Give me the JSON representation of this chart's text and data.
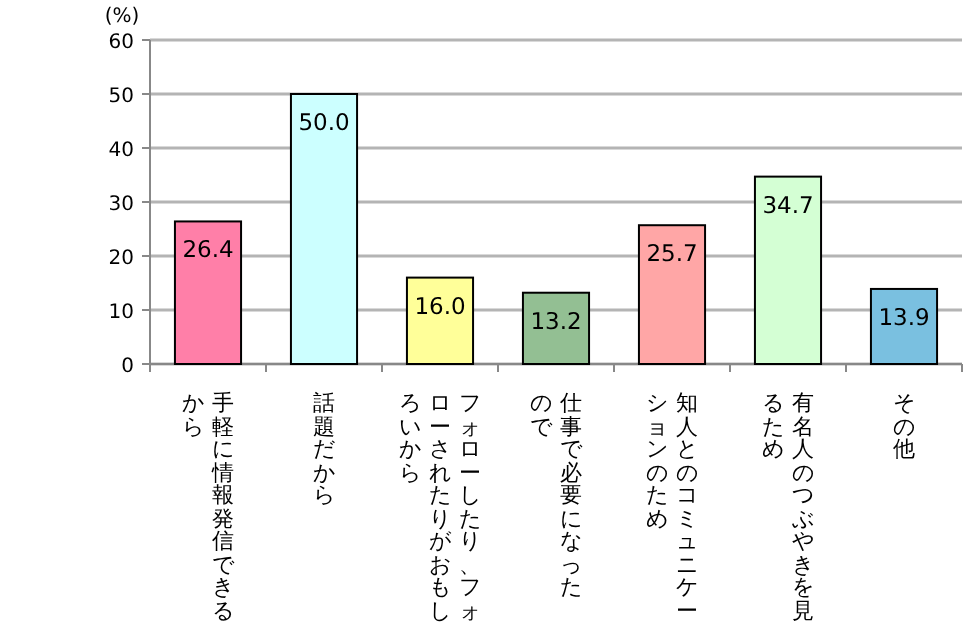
{
  "chart_data": {
    "type": "bar",
    "ylabel": "(%)",
    "categories": [
      "手軽に情報発信できるから",
      "話題だから",
      "フォローしたり、フォローされたりがおもしろいから",
      "仕事で必要になったので",
      "知人とのコミュニケーションのため",
      "有名人のつぶやきを見るため",
      "その他"
    ],
    "values": [
      26.4,
      50.0,
      16.0,
      13.2,
      25.7,
      34.7,
      13.9
    ],
    "colors": [
      "#ff7fa8",
      "#ccffff",
      "#ffff99",
      "#93bf93",
      "#ffa6a6",
      "#d4ffd4",
      "#7ac0e0"
    ],
    "value_labels": [
      "26.4",
      "50.0",
      "16.0",
      "13.2",
      "25.7",
      "34.7",
      "13.9"
    ],
    "ylim": [
      0,
      60
    ],
    "yticks": [
      0,
      10,
      20,
      30,
      40,
      50,
      60
    ],
    "grid": "y"
  }
}
